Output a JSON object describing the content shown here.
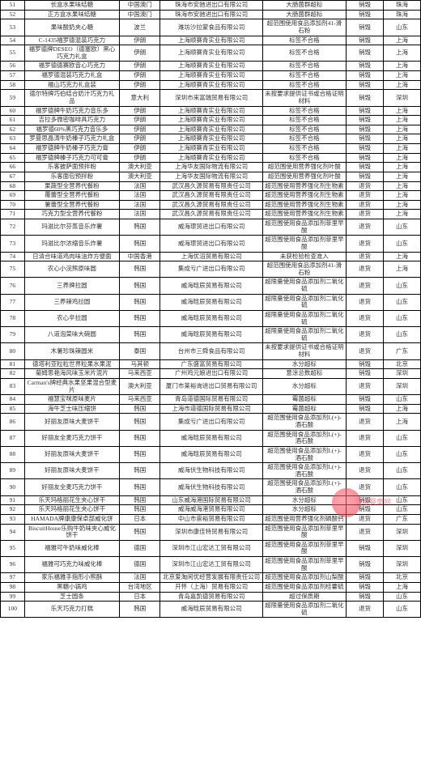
{
  "watermark_text": "全球婴童网",
  "columns": [
    {
      "key": "idx",
      "class": "c-idx"
    },
    {
      "key": "name",
      "class": "c-name"
    },
    {
      "key": "origin",
      "class": "c-origin"
    },
    {
      "key": "importer",
      "class": "c-importer"
    },
    {
      "key": "reason",
      "class": "c-reason"
    },
    {
      "key": "action",
      "class": "c-action"
    },
    {
      "key": "port",
      "class": "c-port"
    }
  ],
  "rows": [
    {
      "idx": "51",
      "name": "长盒水果味结糖",
      "origin": "中国澳门",
      "importer": "珠海市安驰进出口有限公司",
      "reason": "大肠菌群超标",
      "action": "销毁",
      "port": "珠海"
    },
    {
      "idx": "52",
      "name": "正方盒水果味结糖",
      "origin": "中国澳门",
      "importer": "珠海市安驰进出口有限公司",
      "reason": "大肠菌群超标",
      "action": "销毁",
      "port": "珠海"
    },
    {
      "idx": "53",
      "name": "果味酸奶夹心糖",
      "origin": "波兰",
      "importer": "潍坊沙拉蒙食品有限公司",
      "reason": "超范围使用食品添加剂41-滑石粉",
      "action": "销毁",
      "port": "山东"
    },
    {
      "idx": "54",
      "name": "C-1435福罗德混装巧克力",
      "origin": "伊朗",
      "importer": "上海顺赛青实业有限公司",
      "reason": "标签不合格",
      "action": "销毁",
      "port": "上海"
    },
    {
      "idx": "55",
      "name": "福罗德牌DESEO（德塞欧）黑心巧克力礼盒",
      "origin": "伊朗",
      "importer": "上海顺赛青实业有限公司",
      "reason": "标签不合格",
      "action": "销毁",
      "port": "上海"
    },
    {
      "idx": "56",
      "name": "福罗德德赛欧音心巧克力",
      "origin": "伊朗",
      "importer": "上海顺赛青实业有限公司",
      "reason": "标签不合格",
      "action": "销毁",
      "port": "上海"
    },
    {
      "idx": "57",
      "name": "福罗德混装巧克力礼盒",
      "origin": "伊朗",
      "importer": "上海顺赛青实业有限公司",
      "reason": "标签不合格",
      "action": "销毁",
      "port": "上海"
    },
    {
      "idx": "58",
      "name": "福山巧克力礼盒装",
      "origin": "伊朗",
      "importer": "上海顺赛青实业有限公司",
      "reason": "标签不合格",
      "action": "销毁",
      "port": "上海"
    },
    {
      "idx": "59",
      "name": "德尔特牌巧伯结合奶汁巧克力礼品",
      "origin": "意大利",
      "importer": "深圳市来富瑞贸易有限公司",
      "reason": "未按要求提供证书或合格证明材料",
      "action": "销毁",
      "port": "深圳"
    },
    {
      "idx": "60",
      "name": "福罗德牌牛奶巧克力音乐多",
      "origin": "伊朗",
      "importer": "上海顺赛青实业有限公司",
      "reason": "标签不合格",
      "action": "销毁",
      "port": "上海"
    },
    {
      "idx": "61",
      "name": "吉拉多微密咖啡具巧克力",
      "origin": "伊朗",
      "importer": "上海顺赛青实业有限公司",
      "reason": "标签不合格",
      "action": "销毁",
      "port": "上海"
    },
    {
      "idx": "62",
      "name": "福罗德60%黑巧克力音乐多",
      "origin": "伊朗",
      "importer": "上海顺赛青实业有限公司",
      "reason": "标签不合格",
      "action": "销毁",
      "port": "上海"
    },
    {
      "idx": "63",
      "name": "罗曼思晶涛牛奶榛子巧克力礼盒",
      "origin": "伊朗",
      "importer": "上海顺赛青实业有限公司",
      "reason": "标签不合格",
      "action": "销毁",
      "port": "上海"
    },
    {
      "idx": "64",
      "name": "福罗德牌牛奶榛子巧克力膏",
      "origin": "伊朗",
      "importer": "上海顺赛青实业有限公司",
      "reason": "标签不合格",
      "action": "销毁",
      "port": "上海"
    },
    {
      "idx": "65",
      "name": "福罗德牌榛子巧克力可可膏",
      "origin": "伊朗",
      "importer": "上海顺赛青实业有限公司",
      "reason": "标签不合格",
      "action": "销毁",
      "port": "上海"
    },
    {
      "idx": "66",
      "name": "乐客披萨面预拌粉",
      "origin": "澳大利亚",
      "importer": "上海华友国际物流有限公司",
      "reason": "超范围使用营养强化剂叶酸",
      "action": "销毁",
      "port": "上海"
    },
    {
      "idx": "67",
      "name": "乐客面包预拌粉",
      "origin": "澳大利亚",
      "importer": "上海华友国际物流有限公司",
      "reason": "超范围使用营养强化剂叶酸",
      "action": "销毁",
      "port": "上海"
    },
    {
      "idx": "68",
      "name": "果蔬型全营养代餐粉",
      "origin": "法国",
      "importer": "武汉昌久源贸易有限责任公司",
      "reason": "超范围使用营养强化剂生物素",
      "action": "退货",
      "port": "上海"
    },
    {
      "idx": "69",
      "name": "覆蕾型全营养代餐粉",
      "origin": "法国",
      "importer": "武汉昌久源贸易有限责任公司",
      "reason": "超范围使用营养强化剂生物素",
      "action": "退货",
      "port": "上海"
    },
    {
      "idx": "70",
      "name": "薯蕾型全营养代餐粉",
      "origin": "法国",
      "importer": "武汉昌久源贸易有限责任公司",
      "reason": "超范围使用营养强化剂生物素",
      "action": "退货",
      "port": "上海"
    },
    {
      "idx": "71",
      "name": "巧克力型全营养代餐粉",
      "origin": "法国",
      "importer": "武汉昌久源贸易有限责任公司",
      "reason": "超范围使用营养强化剂生物素",
      "action": "退货",
      "port": "上海"
    },
    {
      "idx": "72",
      "name": "玛滋比尔芬蒸音乐炸薯",
      "origin": "韩国",
      "importer": "威海璟贸进出口有限公司",
      "reason": "超范围使用食品添加剂菲里早酸",
      "action": "退货",
      "port": "山东"
    },
    {
      "idx": "73",
      "name": "玛滋比尔浓缩音乐炸薯",
      "origin": "韩国",
      "importer": "威海璟贸进出口有限公司",
      "reason": "超范围使用食品添加剂菲里早酸",
      "action": "退货",
      "port": "山东"
    },
    {
      "idx": "74",
      "name": "日清合味道鸡肉味油炸方便面",
      "origin": "中国香港",
      "importer": "上海优滔贸易有限公司",
      "reason": "未获检验检查准入",
      "action": "退货",
      "port": "上海"
    },
    {
      "idx": "75",
      "name": "农心小浣熊原味圆",
      "origin": "韩国",
      "importer": "集成亏广进出口有限公司",
      "reason": "超范围使用食品添加剂41-滑石粉",
      "action": "退货",
      "port": "上海"
    },
    {
      "idx": "76",
      "name": "三养牌拉圆",
      "origin": "韩国",
      "importer": "威海晗辰贸易有限公司",
      "reason": "超限量使用食品添加剂二氧化硫",
      "action": "退货",
      "port": "山东"
    },
    {
      "idx": "77",
      "name": "三养辣鸡拉圆",
      "origin": "韩国",
      "importer": "威海晗辰贸易有限公司",
      "reason": "超限量使用食品添加剂二氧化硫",
      "action": "退货",
      "port": "山东"
    },
    {
      "idx": "78",
      "name": "农心辛拉圆",
      "origin": "韩国",
      "importer": "威海晗辰贸易有限公司",
      "reason": "超限量使用食品添加剂二氧化硫",
      "action": "退货",
      "port": "山东"
    },
    {
      "idx": "79",
      "name": "八道泡菜味大碗圆",
      "origin": "韩国",
      "importer": "威海晗辰贸易有限公司",
      "reason": "超限量使用食品添加剂二氧化硫",
      "action": "退货",
      "port": "山东"
    },
    {
      "idx": "80",
      "name": "木薯珍珠辣圆米",
      "origin": "泰国",
      "importer": "台州市三舜食品有限公司",
      "reason": "未按要求提供证书或合格证明材料",
      "action": "退货",
      "port": "广东"
    },
    {
      "idx": "81",
      "name": "德塔利亚粒粒世界粒果水果泥",
      "origin": "马其顿",
      "importer": "广东盛富贸易有限公司",
      "reason": "水分超标",
      "action": "销毁",
      "port": "北京"
    },
    {
      "idx": "82",
      "name": "菊姆思艳海风味玉米片泥片",
      "origin": "马来西亚",
      "importer": "广州鸡元娘进出口有限公司",
      "reason": "意涂总数超标",
      "action": "销毁",
      "port": "深圳"
    },
    {
      "idx": "83",
      "name": "Carman's牌经典水果坚果混合型麦片",
      "origin": "澳大利亚",
      "importer": "厦门市莱裕询进出口贸易有限公司",
      "reason": "水分超标",
      "action": "退货",
      "port": "深圳"
    },
    {
      "idx": "84",
      "name": "福慧宝咪原味麦片",
      "origin": "马来西亚",
      "importer": "青岛道德国际贸易有限公司",
      "reason": "霉菌超标",
      "action": "销毁",
      "port": "山东"
    },
    {
      "idx": "85",
      "name": "海牛芝士味压缩饼",
      "origin": "韩国",
      "importer": "上海市道德国际贸易有限公司",
      "reason": "霉菌超标",
      "action": "销毁",
      "port": "上海"
    },
    {
      "idx": "86",
      "name": "好丽友原味大麦饼干",
      "origin": "韩国",
      "importer": "集成亏广进出口有限公司",
      "reason": "超范围使用食品添加剂L(+)-酒石酸",
      "action": "退货",
      "port": "上海"
    },
    {
      "idx": "87",
      "name": "好丽友全麦巧克力饼干",
      "origin": "韩国",
      "importer": "威海晗辰贸易有限公司",
      "reason": "超范围使用食品添加剂L(+)-酒石酸",
      "action": "退货",
      "port": "山东"
    },
    {
      "idx": "88",
      "name": "好丽友原味大麦饼干",
      "origin": "韩国",
      "importer": "威海晗辰贸易有限公司",
      "reason": "超范围使用食品添加剂L(+)-酒石酸",
      "action": "退货",
      "port": "山东"
    },
    {
      "idx": "89",
      "name": "好丽友原味大麦饼干",
      "origin": "韩国",
      "importer": "威海伏生物科技有限公司",
      "reason": "超范围使用食品添加剂L(+)-酒石酸",
      "action": "退货",
      "port": "山东"
    },
    {
      "idx": "90",
      "name": "好丽友全麦巧克力饼干",
      "origin": "韩国",
      "importer": "威海伏生物科技有限公司",
      "reason": "超范围使用食品添加剂L(+)-酒石酸",
      "action": "退货",
      "port": "山东"
    },
    {
      "idx": "91",
      "name": "乐天玛格丽花生夹心饼干",
      "origin": "韩国",
      "importer": "山东威海港国际贸易有限公司",
      "reason": "水分超标",
      "action": "销毁",
      "port": "山东"
    },
    {
      "idx": "92",
      "name": "乐天玛格丽花生夹心饼干",
      "origin": "韩国",
      "importer": "威海威海港贸易有限公司",
      "reason": "水分超标",
      "action": "销毁",
      "port": "山东"
    },
    {
      "idx": "93",
      "name": "HAMADA牌康康保卓部威化饼",
      "origin": "日本",
      "importer": "中山市崇裕贸易有限公司",
      "reason": "超范围使用营养强化剂磷酸钙",
      "action": "退货",
      "port": "广东"
    },
    {
      "idx": "94",
      "name": "BiscuitHouse乐购牛奶味夹心威化饼干",
      "origin": "韩国",
      "importer": "深圳市康佳特贸易有限公司",
      "reason": "超范围使用食品添加剂菲里早酸",
      "action": "退货",
      "port": "深圳"
    },
    {
      "idx": "95",
      "name": "福雅可牛奶味威化棒",
      "origin": "德国",
      "importer": "深圳市江山宏达工贸有限公司",
      "reason": "超范围使用食品添加剂菲里早酸",
      "action": "销毁",
      "port": "深圳"
    },
    {
      "idx": "96",
      "name": "福雅可巧克力味威化棒",
      "origin": "德国",
      "importer": "深圳市江山宏达工贸有限公司",
      "reason": "超范围使用食品添加剂菲里早酸",
      "action": "销毁",
      "port": "深圳"
    },
    {
      "idx": "97",
      "name": "家乐福雅手指形小熊酥",
      "origin": "法国",
      "importer": "北京爱淘闲优经营发展有限责任公司",
      "reason": "超范围使用食品添加剂山梨酸",
      "action": "销毁",
      "port": "北京"
    },
    {
      "idx": "98",
      "name": "黑糖小锅鸡",
      "origin": "台湾地区",
      "importer": "开怀（上海）贸易有限公司",
      "reason": "超范围使用食品添加剂桂藿硫",
      "action": "销毁",
      "port": "上海"
    },
    {
      "idx": "99",
      "name": "芝士圆条",
      "origin": "日本",
      "importer": "青岛嘉凯德贸易有限公司",
      "reason": "超过保质期",
      "action": "销毁",
      "port": "山东"
    },
    {
      "idx": "100",
      "name": "乐天巧克力打糕",
      "origin": "韩国",
      "importer": "威海晗辰贸易有限公司",
      "reason": "超限量使用食品添加剂二氧化硫",
      "action": "退货",
      "port": "山东"
    }
  ]
}
